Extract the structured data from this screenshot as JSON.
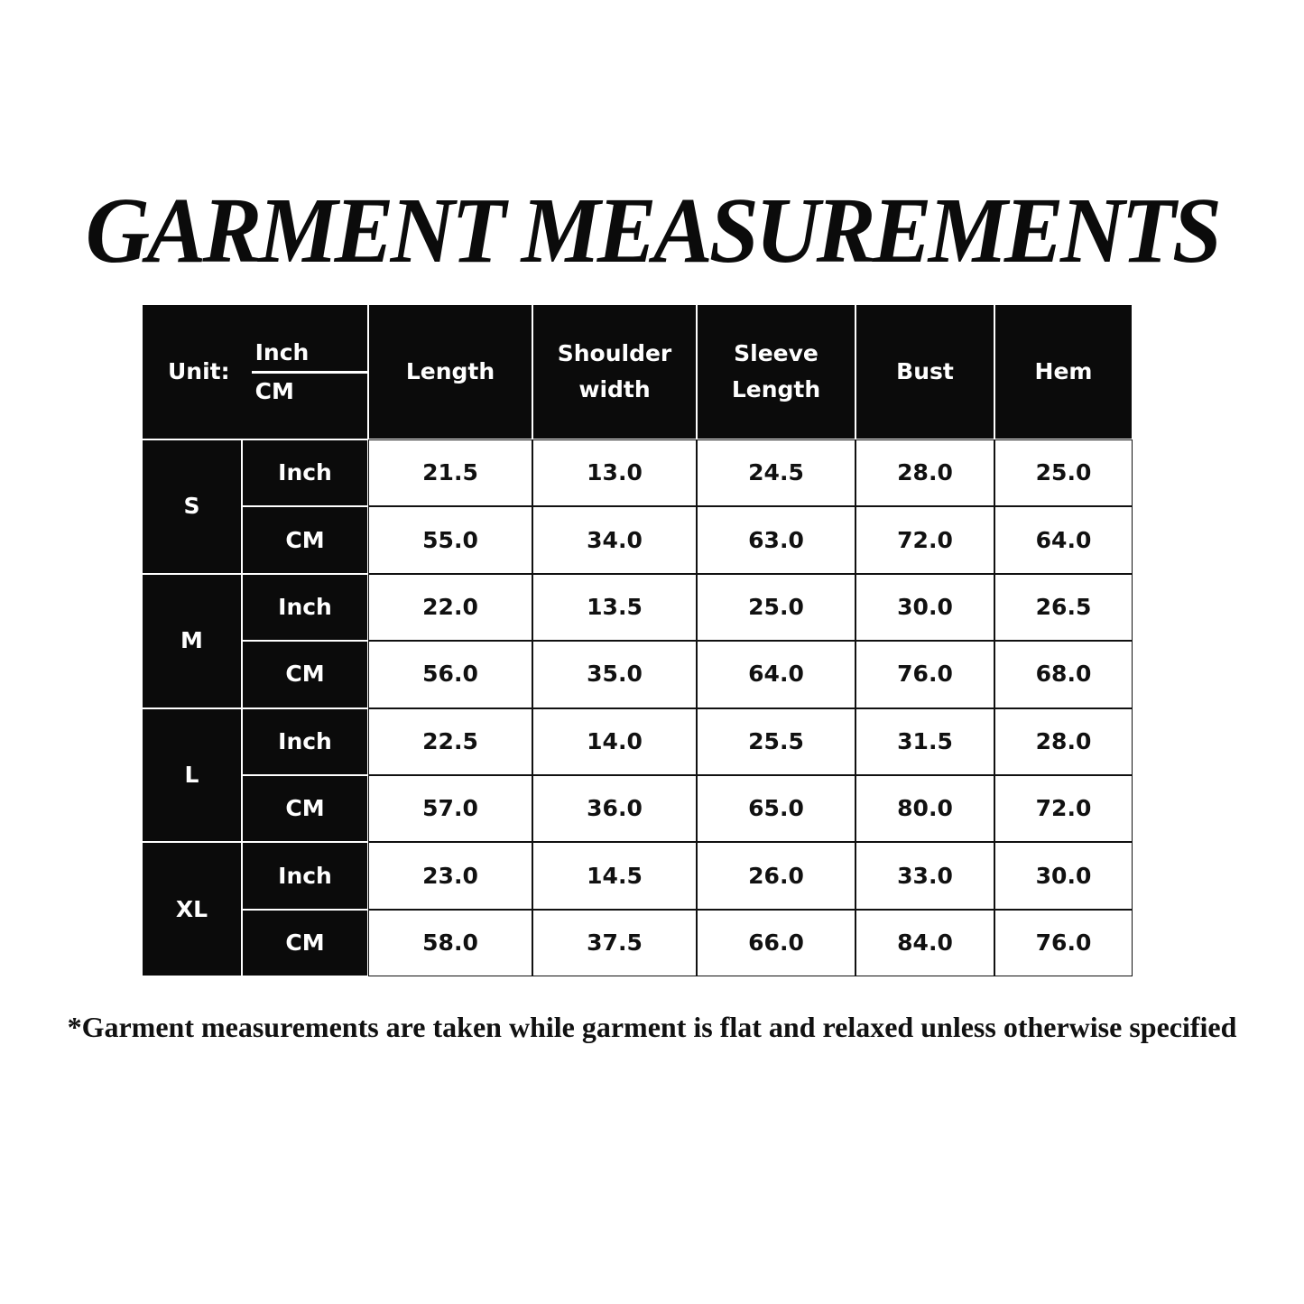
{
  "title": "GARMENT MEASUREMENTS",
  "table": {
    "unit_label": "Unit:",
    "unit_top": "Inch",
    "unit_bottom": "CM",
    "headers": [
      "Length",
      "Shoulder width",
      "Sleeve Length",
      "Bust",
      "Hem"
    ],
    "sizes": [
      {
        "size": "S",
        "rows": [
          {
            "unit": "Inch",
            "values": [
              "21.5",
              "13.0",
              "24.5",
              "28.0",
              "25.0"
            ]
          },
          {
            "unit": "CM",
            "values": [
              "55.0",
              "34.0",
              "63.0",
              "72.0",
              "64.0"
            ]
          }
        ]
      },
      {
        "size": "M",
        "rows": [
          {
            "unit": "Inch",
            "values": [
              "22.0",
              "13.5",
              "25.0",
              "30.0",
              "26.5"
            ]
          },
          {
            "unit": "CM",
            "values": [
              "56.0",
              "35.0",
              "64.0",
              "76.0",
              "68.0"
            ]
          }
        ]
      },
      {
        "size": "L",
        "rows": [
          {
            "unit": "Inch",
            "values": [
              "22.5",
              "14.0",
              "25.5",
              "31.5",
              "28.0"
            ]
          },
          {
            "unit": "CM",
            "values": [
              "57.0",
              "36.0",
              "65.0",
              "80.0",
              "72.0"
            ]
          }
        ]
      },
      {
        "size": "XL",
        "rows": [
          {
            "unit": "Inch",
            "values": [
              "23.0",
              "14.5",
              "26.0",
              "33.0",
              "30.0"
            ]
          },
          {
            "unit": "CM",
            "values": [
              "58.0",
              "37.5",
              "66.0",
              "84.0",
              "76.0"
            ]
          }
        ]
      }
    ]
  },
  "footnote": "*Garment measurements are taken while garment is flat and relaxed unless otherwise specified"
}
